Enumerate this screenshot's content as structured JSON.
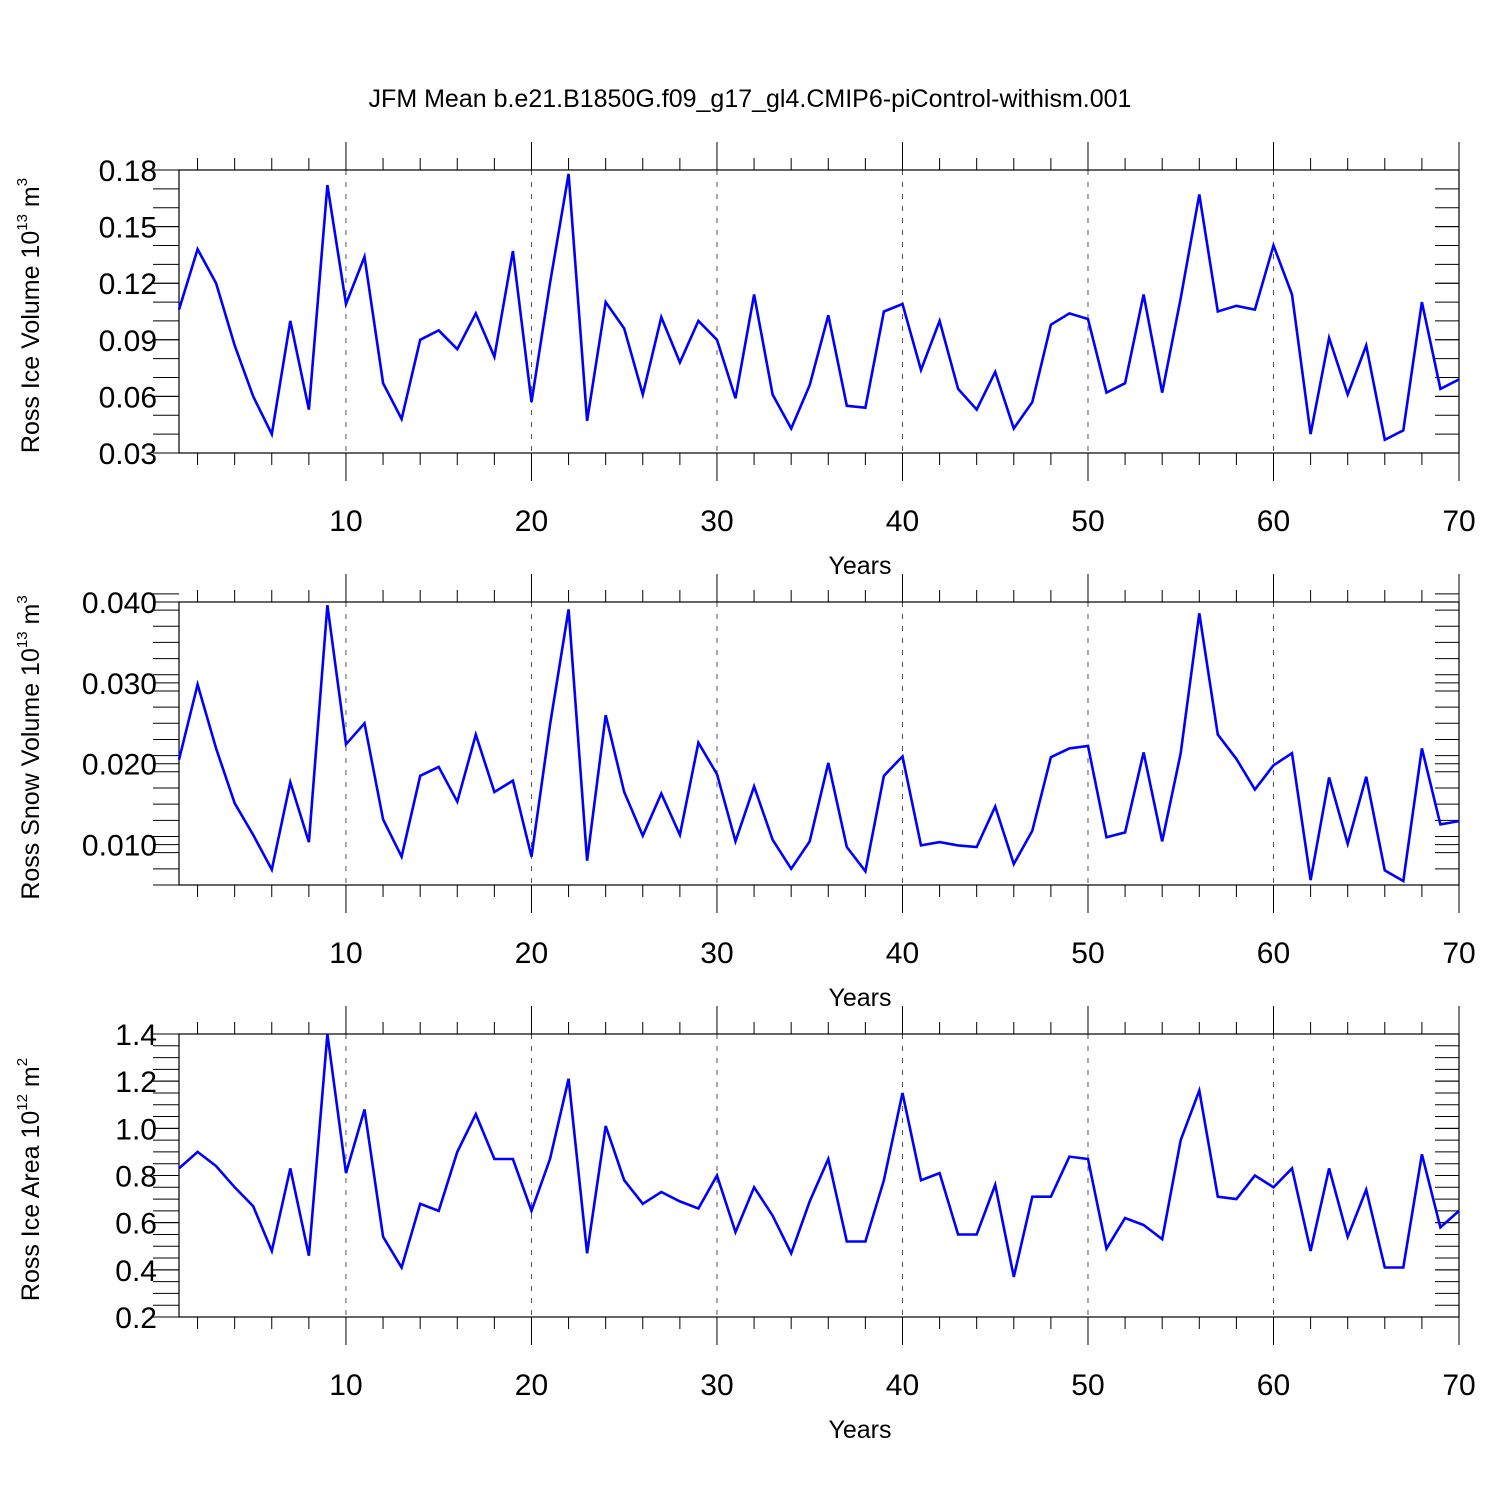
{
  "colors": {
    "series": "#0000ff",
    "axis": "#000000",
    "grid": "#555555"
  },
  "chart_data": {
    "title": "JFM Mean b.e21.B1850G.f09_g17_gl4.CMIP6-piControl-withism.001",
    "panels": [
      {
        "id": "ice-volume",
        "type": "line",
        "ylabel": {
          "main": "Ross Ice Volume 10",
          "exp": "13",
          "unit": " m",
          "unit_exp": "3"
        },
        "xlabel": "Years",
        "xlim": [
          1,
          70
        ],
        "ylim": [
          0.03,
          0.18
        ],
        "x_ticks": [
          10,
          20,
          30,
          40,
          50,
          60,
          70
        ],
        "y_ticks": [
          0.03,
          0.06,
          0.09,
          0.12,
          0.15,
          0.18
        ],
        "y_tick_labels": [
          "0.03",
          "0.06",
          "0.09",
          "0.12",
          "0.15",
          "0.18"
        ],
        "y_minor_step": 0.01,
        "grid_x": [
          10,
          20,
          30,
          40,
          50,
          60
        ],
        "series": [
          {
            "name": "Ross Ice Volume",
            "values": [
              0.106,
              0.138,
              0.12,
              0.087,
              0.06,
              0.04,
              0.1,
              0.053,
              0.172,
              0.109,
              0.134,
              0.067,
              0.048,
              0.09,
              0.095,
              0.085,
              0.104,
              0.081,
              0.137,
              0.057,
              0.12,
              0.178,
              0.047,
              0.11,
              0.096,
              0.061,
              0.102,
              0.078,
              0.1,
              0.09,
              0.059,
              0.114,
              0.061,
              0.043,
              0.066,
              0.103,
              0.055,
              0.054,
              0.105,
              0.109,
              0.074,
              0.1,
              0.064,
              0.053,
              0.073,
              0.043,
              0.057,
              0.098,
              0.104,
              0.101,
              0.062,
              0.067,
              0.114,
              0.062,
              0.112,
              0.167,
              0.105,
              0.108,
              0.106,
              0.14,
              0.114,
              0.04,
              0.091,
              0.061,
              0.087,
              0.037,
              0.042,
              0.11,
              0.064,
              0.069
            ]
          }
        ]
      },
      {
        "id": "snow-volume",
        "type": "line",
        "ylabel": {
          "main": "Ross Snow Volume 10",
          "exp": "13",
          "unit": " m",
          "unit_exp": "3"
        },
        "xlabel": "Years",
        "xlim": [
          1,
          70
        ],
        "ylim": [
          0.005,
          0.04
        ],
        "x_ticks": [
          10,
          20,
          30,
          40,
          50,
          60,
          70
        ],
        "y_ticks": [
          0.01,
          0.02,
          0.03,
          0.04
        ],
        "y_tick_labels": [
          "0.010",
          "0.020",
          "0.030",
          "0.040"
        ],
        "y_minor_step": 0.002,
        "grid_x": [
          10,
          20,
          30,
          40,
          50,
          60
        ],
        "series": [
          {
            "name": "Ross Snow Volume",
            "values": [
              0.0205,
              0.0298,
              0.0219,
              0.0151,
              0.0112,
              0.0069,
              0.0177,
              0.0103,
              0.0396,
              0.0224,
              0.025,
              0.0131,
              0.0085,
              0.0185,
              0.0196,
              0.0153,
              0.0236,
              0.0165,
              0.0179,
              0.0085,
              0.0248,
              0.0391,
              0.008,
              0.026,
              0.0165,
              0.0111,
              0.0163,
              0.0112,
              0.0226,
              0.0187,
              0.0104,
              0.0172,
              0.0106,
              0.007,
              0.0104,
              0.0201,
              0.0097,
              0.0067,
              0.0185,
              0.0209,
              0.0099,
              0.0103,
              0.0099,
              0.0097,
              0.0147,
              0.0076,
              0.0117,
              0.0208,
              0.0219,
              0.0222,
              0.0109,
              0.0115,
              0.0214,
              0.0104,
              0.0213,
              0.0386,
              0.0236,
              0.0206,
              0.0168,
              0.0198,
              0.0213,
              0.0056,
              0.0183,
              0.0101,
              0.0184,
              0.0068,
              0.0055,
              0.0219,
              0.0125,
              0.0129
            ]
          }
        ]
      },
      {
        "id": "ice-area",
        "type": "line",
        "ylabel": {
          "main": "Ross Ice Area 10",
          "exp": "12",
          "unit": " m",
          "unit_exp": "2"
        },
        "xlabel": "Years",
        "xlim": [
          1,
          70
        ],
        "ylim": [
          0.2,
          1.4
        ],
        "x_ticks": [
          10,
          20,
          30,
          40,
          50,
          60,
          70
        ],
        "y_ticks": [
          0.2,
          0.4,
          0.6,
          0.8,
          1.0,
          1.2,
          1.4
        ],
        "y_tick_labels": [
          "0.2",
          "0.4",
          "0.6",
          "0.8",
          "1.0",
          "1.2",
          "1.4"
        ],
        "y_minor_step": 0.05,
        "grid_x": [
          10,
          20,
          30,
          40,
          50,
          60
        ],
        "series": [
          {
            "name": "Ross Ice Area",
            "values": [
              0.83,
              0.9,
              0.84,
              0.75,
              0.67,
              0.48,
              0.83,
              0.46,
              1.4,
              0.81,
              1.08,
              0.54,
              0.41,
              0.68,
              0.65,
              0.9,
              1.06,
              0.87,
              0.87,
              0.65,
              0.87,
              1.21,
              0.47,
              1.01,
              0.78,
              0.68,
              0.73,
              0.69,
              0.66,
              0.8,
              0.56,
              0.75,
              0.63,
              0.47,
              0.69,
              0.87,
              0.52,
              0.52,
              0.78,
              1.15,
              0.78,
              0.81,
              0.55,
              0.55,
              0.76,
              0.37,
              0.71,
              0.71,
              0.88,
              0.87,
              0.49,
              0.62,
              0.59,
              0.53,
              0.95,
              1.16,
              0.71,
              0.7,
              0.8,
              0.75,
              0.83,
              0.48,
              0.83,
              0.54,
              0.74,
              0.41,
              0.41,
              0.89,
              0.58,
              0.65
            ]
          }
        ]
      }
    ]
  }
}
